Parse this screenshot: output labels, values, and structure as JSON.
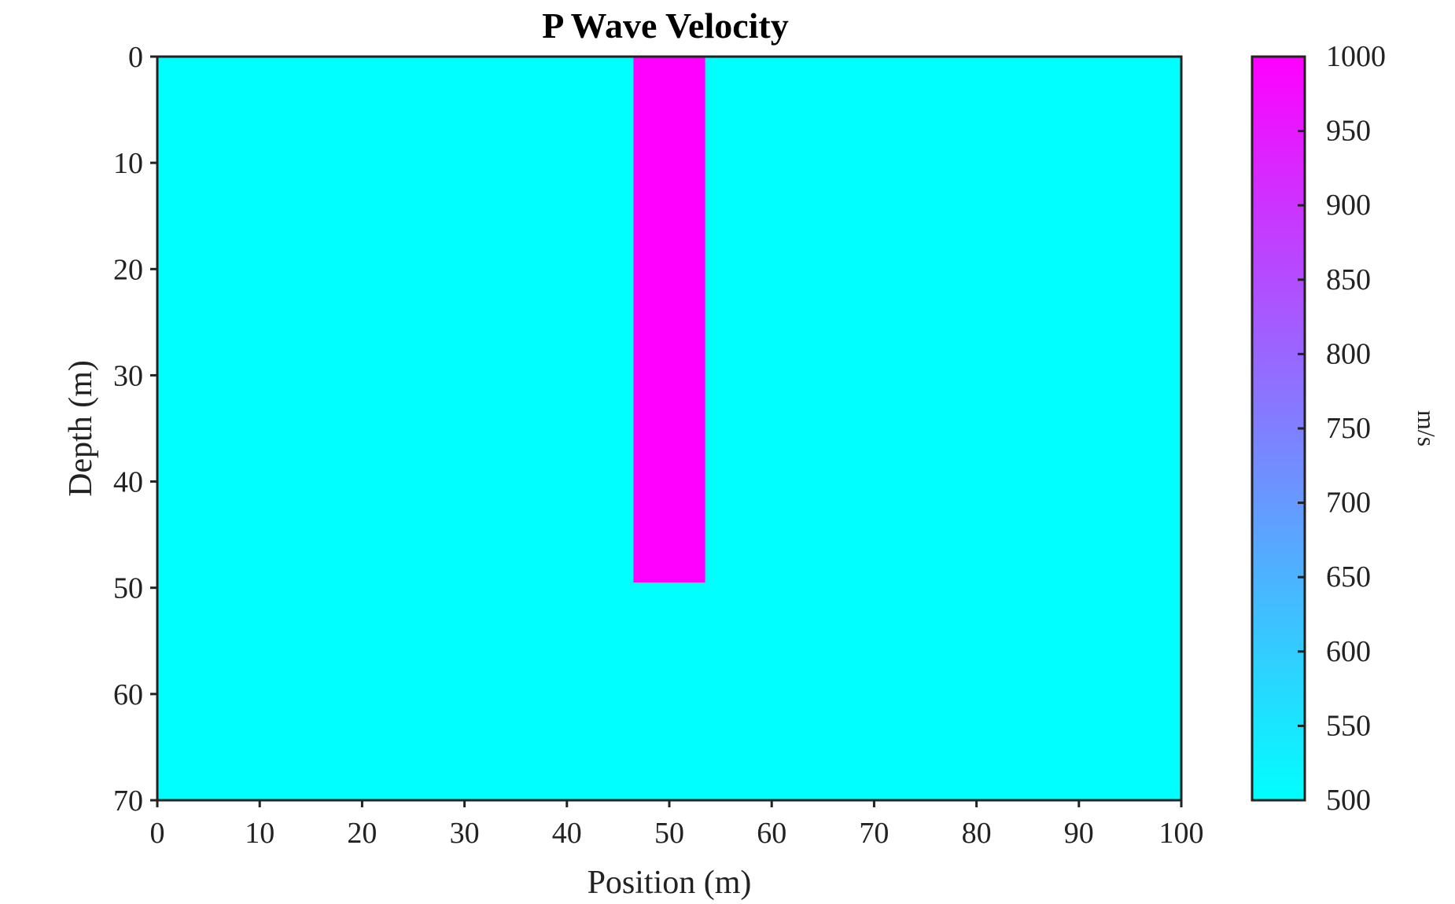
{
  "chart_data": {
    "type": "heatmap",
    "title": "P Wave Velocity",
    "xlabel": "Position (m)",
    "ylabel": "Depth (m)",
    "xlim": [
      0,
      100
    ],
    "ylim": [
      0,
      70
    ],
    "y_axis_inverted": true,
    "x_ticks": [
      "0",
      "10",
      "20",
      "30",
      "40",
      "50",
      "60",
      "70",
      "80",
      "90",
      "100"
    ],
    "y_ticks": [
      "0",
      "10",
      "20",
      "30",
      "40",
      "50",
      "60",
      "70"
    ],
    "background_value": 500,
    "regions": [
      {
        "x_range": [
          46.5,
          53.5
        ],
        "depth_range": [
          0,
          49.5
        ],
        "value": 1000
      }
    ],
    "colorbar": {
      "label": "m/s",
      "range": [
        500,
        1000
      ],
      "ticks": [
        "500",
        "550",
        "600",
        "650",
        "700",
        "750",
        "800",
        "850",
        "900",
        "950",
        "1000"
      ],
      "colormap": "cool",
      "color_low": "#00ffff",
      "color_high": "#ff00ff"
    },
    "grid": false
  }
}
